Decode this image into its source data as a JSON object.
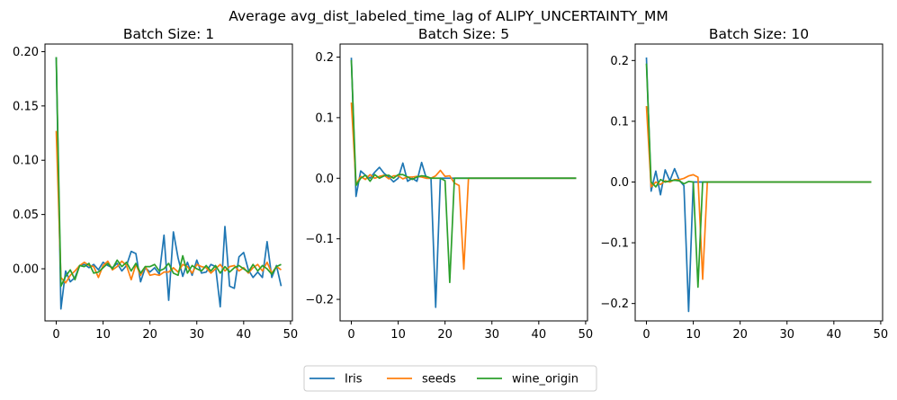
{
  "figure_title": "Average avg_dist_labeled_time_lag of ALIPY_UNCERTAINTY_MM",
  "colors": {
    "Iris": "#1f77b4",
    "seeds": "#ff7f0e",
    "wine_origin": "#2ca02c"
  },
  "legend": [
    "Iris",
    "seeds",
    "wine_origin"
  ],
  "chart_data": [
    {
      "type": "line",
      "title": "Batch Size: 1",
      "xlabel": "",
      "ylabel": "",
      "xlim": [
        -2.4,
        50.4
      ],
      "ylim": [
        -0.048,
        0.207
      ],
      "xticks": [
        0,
        10,
        20,
        30,
        40,
        50
      ],
      "yticks": [
        0.0,
        0.05,
        0.1,
        0.15,
        0.2
      ],
      "ytick_labels": [
        "0.00",
        "0.05",
        "0.10",
        "0.15",
        "0.20"
      ],
      "grid": false,
      "series": [
        {
          "name": "Iris",
          "x": [
            0,
            1,
            2,
            3,
            4,
            5,
            6,
            7,
            8,
            9,
            10,
            11,
            12,
            13,
            14,
            15,
            16,
            17,
            18,
            19,
            20,
            21,
            22,
            23,
            24,
            25,
            26,
            27,
            28,
            29,
            30,
            31,
            32,
            33,
            34,
            35,
            36,
            37,
            38,
            39,
            40,
            41,
            42,
            43,
            44,
            45,
            46,
            47,
            48
          ],
          "values": [
            0.195,
            -0.037,
            -0.002,
            -0.012,
            -0.008,
            0.003,
            0.004,
            0.001,
            0.004,
            -0.001,
            0.006,
            0.003,
            0.001,
            0.005,
            -0.002,
            0.003,
            0.016,
            0.014,
            -0.012,
            0.001,
            -0.003,
            0.001,
            -0.005,
            0.031,
            -0.029,
            0.034,
            0.01,
            -0.007,
            0.006,
            -0.006,
            0.008,
            -0.004,
            -0.003,
            0.004,
            0.002,
            -0.035,
            0.039,
            -0.016,
            -0.018,
            0.011,
            0.015,
            -0.001,
            -0.008,
            -0.003,
            -0.008,
            0.025,
            -0.008,
            0.003,
            -0.016
          ]
        },
        {
          "name": "seeds",
          "x": [
            0,
            1,
            2,
            3,
            4,
            5,
            6,
            7,
            8,
            9,
            10,
            11,
            12,
            13,
            14,
            15,
            16,
            17,
            18,
            19,
            20,
            21,
            22,
            23,
            24,
            25,
            26,
            27,
            28,
            29,
            30,
            31,
            32,
            33,
            34,
            35,
            36,
            37,
            38,
            39,
            40,
            41,
            42,
            43,
            44,
            45,
            46,
            47,
            48
          ],
          "values": [
            0.127,
            -0.008,
            -0.013,
            -0.006,
            -0.002,
            0.003,
            0.006,
            0.003,
            0.002,
            -0.008,
            0.003,
            0.007,
            -0.001,
            0.002,
            0.007,
            0.003,
            -0.01,
            0.004,
            -0.006,
            0.002,
            -0.006,
            -0.005,
            -0.006,
            -0.003,
            -0.003,
            0.001,
            -0.003,
            0.004,
            0.002,
            -0.004,
            0.004,
            0.002,
            0.001,
            -0.004,
            0.0,
            0.004,
            -0.002,
            0.002,
            0.003,
            -0.002,
            0.001,
            -0.004,
            0.001,
            0.004,
            -0.002,
            0.006,
            -0.004,
            0.002,
            -0.001
          ]
        },
        {
          "name": "wine_origin",
          "x": [
            0,
            1,
            2,
            3,
            4,
            5,
            6,
            7,
            8,
            9,
            10,
            11,
            12,
            13,
            14,
            15,
            16,
            17,
            18,
            19,
            20,
            21,
            22,
            23,
            24,
            25,
            26,
            27,
            28,
            29,
            30,
            31,
            32,
            33,
            34,
            35,
            36,
            37,
            38,
            39,
            40,
            41,
            42,
            43,
            44,
            45,
            46,
            47,
            48
          ],
          "values": [
            0.195,
            -0.016,
            -0.007,
            -0.001,
            -0.01,
            0.003,
            0.002,
            0.005,
            -0.004,
            -0.003,
            0.001,
            0.005,
            0.0,
            0.008,
            0.002,
            0.006,
            -0.002,
            0.005,
            -0.004,
            0.002,
            0.002,
            0.004,
            -0.002,
            0.0,
            0.005,
            -0.004,
            -0.006,
            0.012,
            -0.004,
            0.003,
            0.0,
            -0.002,
            0.003,
            -0.002,
            0.003,
            -0.004,
            0.002,
            -0.003,
            0.001,
            0.003,
            0.0,
            -0.003,
            0.004,
            -0.002,
            0.003,
            0.0,
            -0.005,
            0.002,
            0.004
          ]
        }
      ]
    },
    {
      "type": "line",
      "title": "Batch Size: 5",
      "xlabel": "",
      "ylabel": "",
      "xlim": [
        -2.4,
        50.4
      ],
      "ylim": [
        -0.2355,
        0.2215
      ],
      "xticks": [
        0,
        10,
        20,
        30,
        40,
        50
      ],
      "yticks": [
        -0.2,
        -0.1,
        0.0,
        0.1,
        0.2
      ],
      "ytick_labels": [
        "−0.2",
        "−0.1",
        "0.0",
        "0.1",
        "0.2"
      ],
      "grid": false,
      "series": [
        {
          "name": "Iris",
          "x": [
            0,
            1,
            2,
            3,
            4,
            5,
            6,
            7,
            8,
            9,
            10,
            11,
            12,
            13,
            14,
            15,
            16,
            17,
            18,
            19,
            20,
            21,
            22,
            23,
            24,
            25,
            26,
            27,
            28,
            29,
            30,
            31,
            32,
            33,
            34,
            35,
            36,
            37,
            38,
            39,
            40,
            41,
            42,
            43,
            44,
            45,
            46,
            47,
            48
          ],
          "values": [
            0.199,
            -0.03,
            0.012,
            0.005,
            0.0,
            0.01,
            0.018,
            0.008,
            0.002,
            -0.006,
            0.0,
            0.025,
            -0.005,
            0.0,
            -0.005,
            0.026,
            0.0,
            0.0,
            -0.213,
            0.0,
            0.0,
            0.0,
            0.0,
            0,
            0,
            0,
            0,
            0,
            0,
            0,
            0,
            0,
            0,
            0,
            0,
            0,
            0,
            0,
            0,
            0,
            0,
            0,
            0,
            0,
            0,
            0,
            0,
            0,
            0
          ]
        },
        {
          "name": "seeds",
          "x": [
            0,
            1,
            2,
            3,
            4,
            5,
            6,
            7,
            8,
            9,
            10,
            11,
            12,
            13,
            14,
            15,
            16,
            17,
            18,
            19,
            20,
            21,
            22,
            23,
            24,
            25,
            26,
            27,
            28,
            29,
            30,
            31,
            32,
            33,
            34,
            35,
            36,
            37,
            38,
            39,
            40,
            41,
            42,
            43,
            44,
            45,
            46,
            47,
            48
          ],
          "values": [
            0.125,
            -0.01,
            0.003,
            -0.002,
            0.006,
            0.0,
            0.003,
            0.005,
            -0.001,
            0.004,
            0.004,
            -0.001,
            0.002,
            0.002,
            0.003,
            0.002,
            0.0,
            0.0,
            0.004,
            0.013,
            0.003,
            0.004,
            -0.008,
            -0.012,
            -0.15,
            0.0,
            0,
            0,
            0,
            0,
            0,
            0,
            0,
            0,
            0,
            0,
            0,
            0,
            0,
            0,
            0,
            0,
            0,
            0,
            0,
            0,
            0,
            0,
            0
          ]
        },
        {
          "name": "wine_origin",
          "x": [
            0,
            1,
            2,
            3,
            4,
            5,
            6,
            7,
            8,
            9,
            10,
            11,
            12,
            13,
            14,
            15,
            16,
            17,
            18,
            19,
            20,
            21,
            22,
            23,
            24,
            25,
            26,
            27,
            28,
            29,
            30,
            31,
            32,
            33,
            34,
            35,
            36,
            37,
            38,
            39,
            40,
            41,
            42,
            43,
            44,
            45,
            46,
            47,
            48
          ],
          "values": [
            0.195,
            -0.012,
            0.0,
            0.005,
            -0.005,
            0.006,
            0.0,
            0.004,
            0.005,
            0.0,
            0.006,
            0.006,
            0.002,
            -0.002,
            0.002,
            0.004,
            0.003,
            0.0,
            0.0,
            0.0,
            -0.004,
            -0.172,
            0.0,
            0,
            0,
            0,
            0,
            0,
            0,
            0,
            0,
            0,
            0,
            0,
            0,
            0,
            0,
            0,
            0,
            0,
            0,
            0,
            0,
            0,
            0,
            0,
            0,
            0,
            0
          ]
        }
      ]
    },
    {
      "type": "line",
      "title": "Batch Size: 10",
      "xlabel": "",
      "ylabel": "",
      "xlim": [
        -2.4,
        50.4
      ],
      "ylim": [
        -0.2286,
        0.2271
      ],
      "xticks": [
        0,
        10,
        20,
        30,
        40,
        50
      ],
      "yticks": [
        -0.2,
        -0.1,
        0.0,
        0.1,
        0.2
      ],
      "ytick_labels": [
        "−0.2",
        "−0.1",
        "0.0",
        "0.1",
        "0.2"
      ],
      "grid": false,
      "series": [
        {
          "name": "Iris",
          "x": [
            0,
            1,
            2,
            3,
            4,
            5,
            6,
            7,
            8,
            9,
            10,
            11,
            12,
            13,
            14,
            15,
            16,
            17,
            18,
            19,
            20,
            21,
            22,
            23,
            24,
            25,
            26,
            27,
            28,
            29,
            30,
            31,
            32,
            33,
            34,
            35,
            36,
            37,
            38,
            39,
            40,
            41,
            42,
            43,
            44,
            45,
            46,
            47,
            48
          ],
          "values": [
            0.205,
            -0.015,
            0.018,
            -0.021,
            0.02,
            0.002,
            0.022,
            0.003,
            -0.006,
            -0.213,
            0.0,
            0.0,
            0,
            0,
            0,
            0,
            0,
            0,
            0,
            0,
            0,
            0,
            0,
            0,
            0,
            0,
            0,
            0,
            0,
            0,
            0,
            0,
            0,
            0,
            0,
            0,
            0,
            0,
            0,
            0,
            0,
            0,
            0,
            0,
            0,
            0,
            0,
            0,
            0
          ]
        },
        {
          "name": "seeds",
          "x": [
            0,
            1,
            2,
            3,
            4,
            5,
            6,
            7,
            8,
            9,
            10,
            11,
            12,
            13,
            14,
            15,
            16,
            17,
            18,
            19,
            20,
            21,
            22,
            23,
            24,
            25,
            26,
            27,
            28,
            29,
            30,
            31,
            32,
            33,
            34,
            35,
            36,
            37,
            38,
            39,
            40,
            41,
            42,
            43,
            44,
            45,
            46,
            47,
            48
          ],
          "values": [
            0.125,
            -0.008,
            0.0,
            -0.004,
            0.002,
            0.0,
            0.004,
            0.004,
            0.006,
            0.01,
            0.012,
            0.008,
            -0.16,
            0.0,
            0,
            0,
            0,
            0,
            0,
            0,
            0,
            0,
            0,
            0,
            0,
            0,
            0,
            0,
            0,
            0,
            0,
            0,
            0,
            0,
            0,
            0,
            0,
            0,
            0,
            0,
            0,
            0,
            0,
            0,
            0,
            0,
            0,
            0,
            0
          ]
        },
        {
          "name": "wine_origin",
          "x": [
            0,
            1,
            2,
            3,
            4,
            5,
            6,
            7,
            8,
            9,
            10,
            11,
            12,
            13,
            14,
            15,
            16,
            17,
            18,
            19,
            20,
            21,
            22,
            23,
            24,
            25,
            26,
            27,
            28,
            29,
            30,
            31,
            32,
            33,
            34,
            35,
            36,
            37,
            38,
            39,
            40,
            41,
            42,
            43,
            44,
            45,
            46,
            47,
            48
          ],
          "values": [
            0.195,
            0.0,
            -0.008,
            0.004,
            0.0,
            0.002,
            0.003,
            0.002,
            -0.003,
            0.001,
            0.0,
            -0.173,
            0.0,
            0,
            0,
            0,
            0,
            0,
            0,
            0,
            0,
            0,
            0,
            0,
            0,
            0,
            0,
            0,
            0,
            0,
            0,
            0,
            0,
            0,
            0,
            0,
            0,
            0,
            0,
            0,
            0,
            0,
            0,
            0,
            0,
            0,
            0,
            0,
            0
          ]
        }
      ]
    }
  ]
}
